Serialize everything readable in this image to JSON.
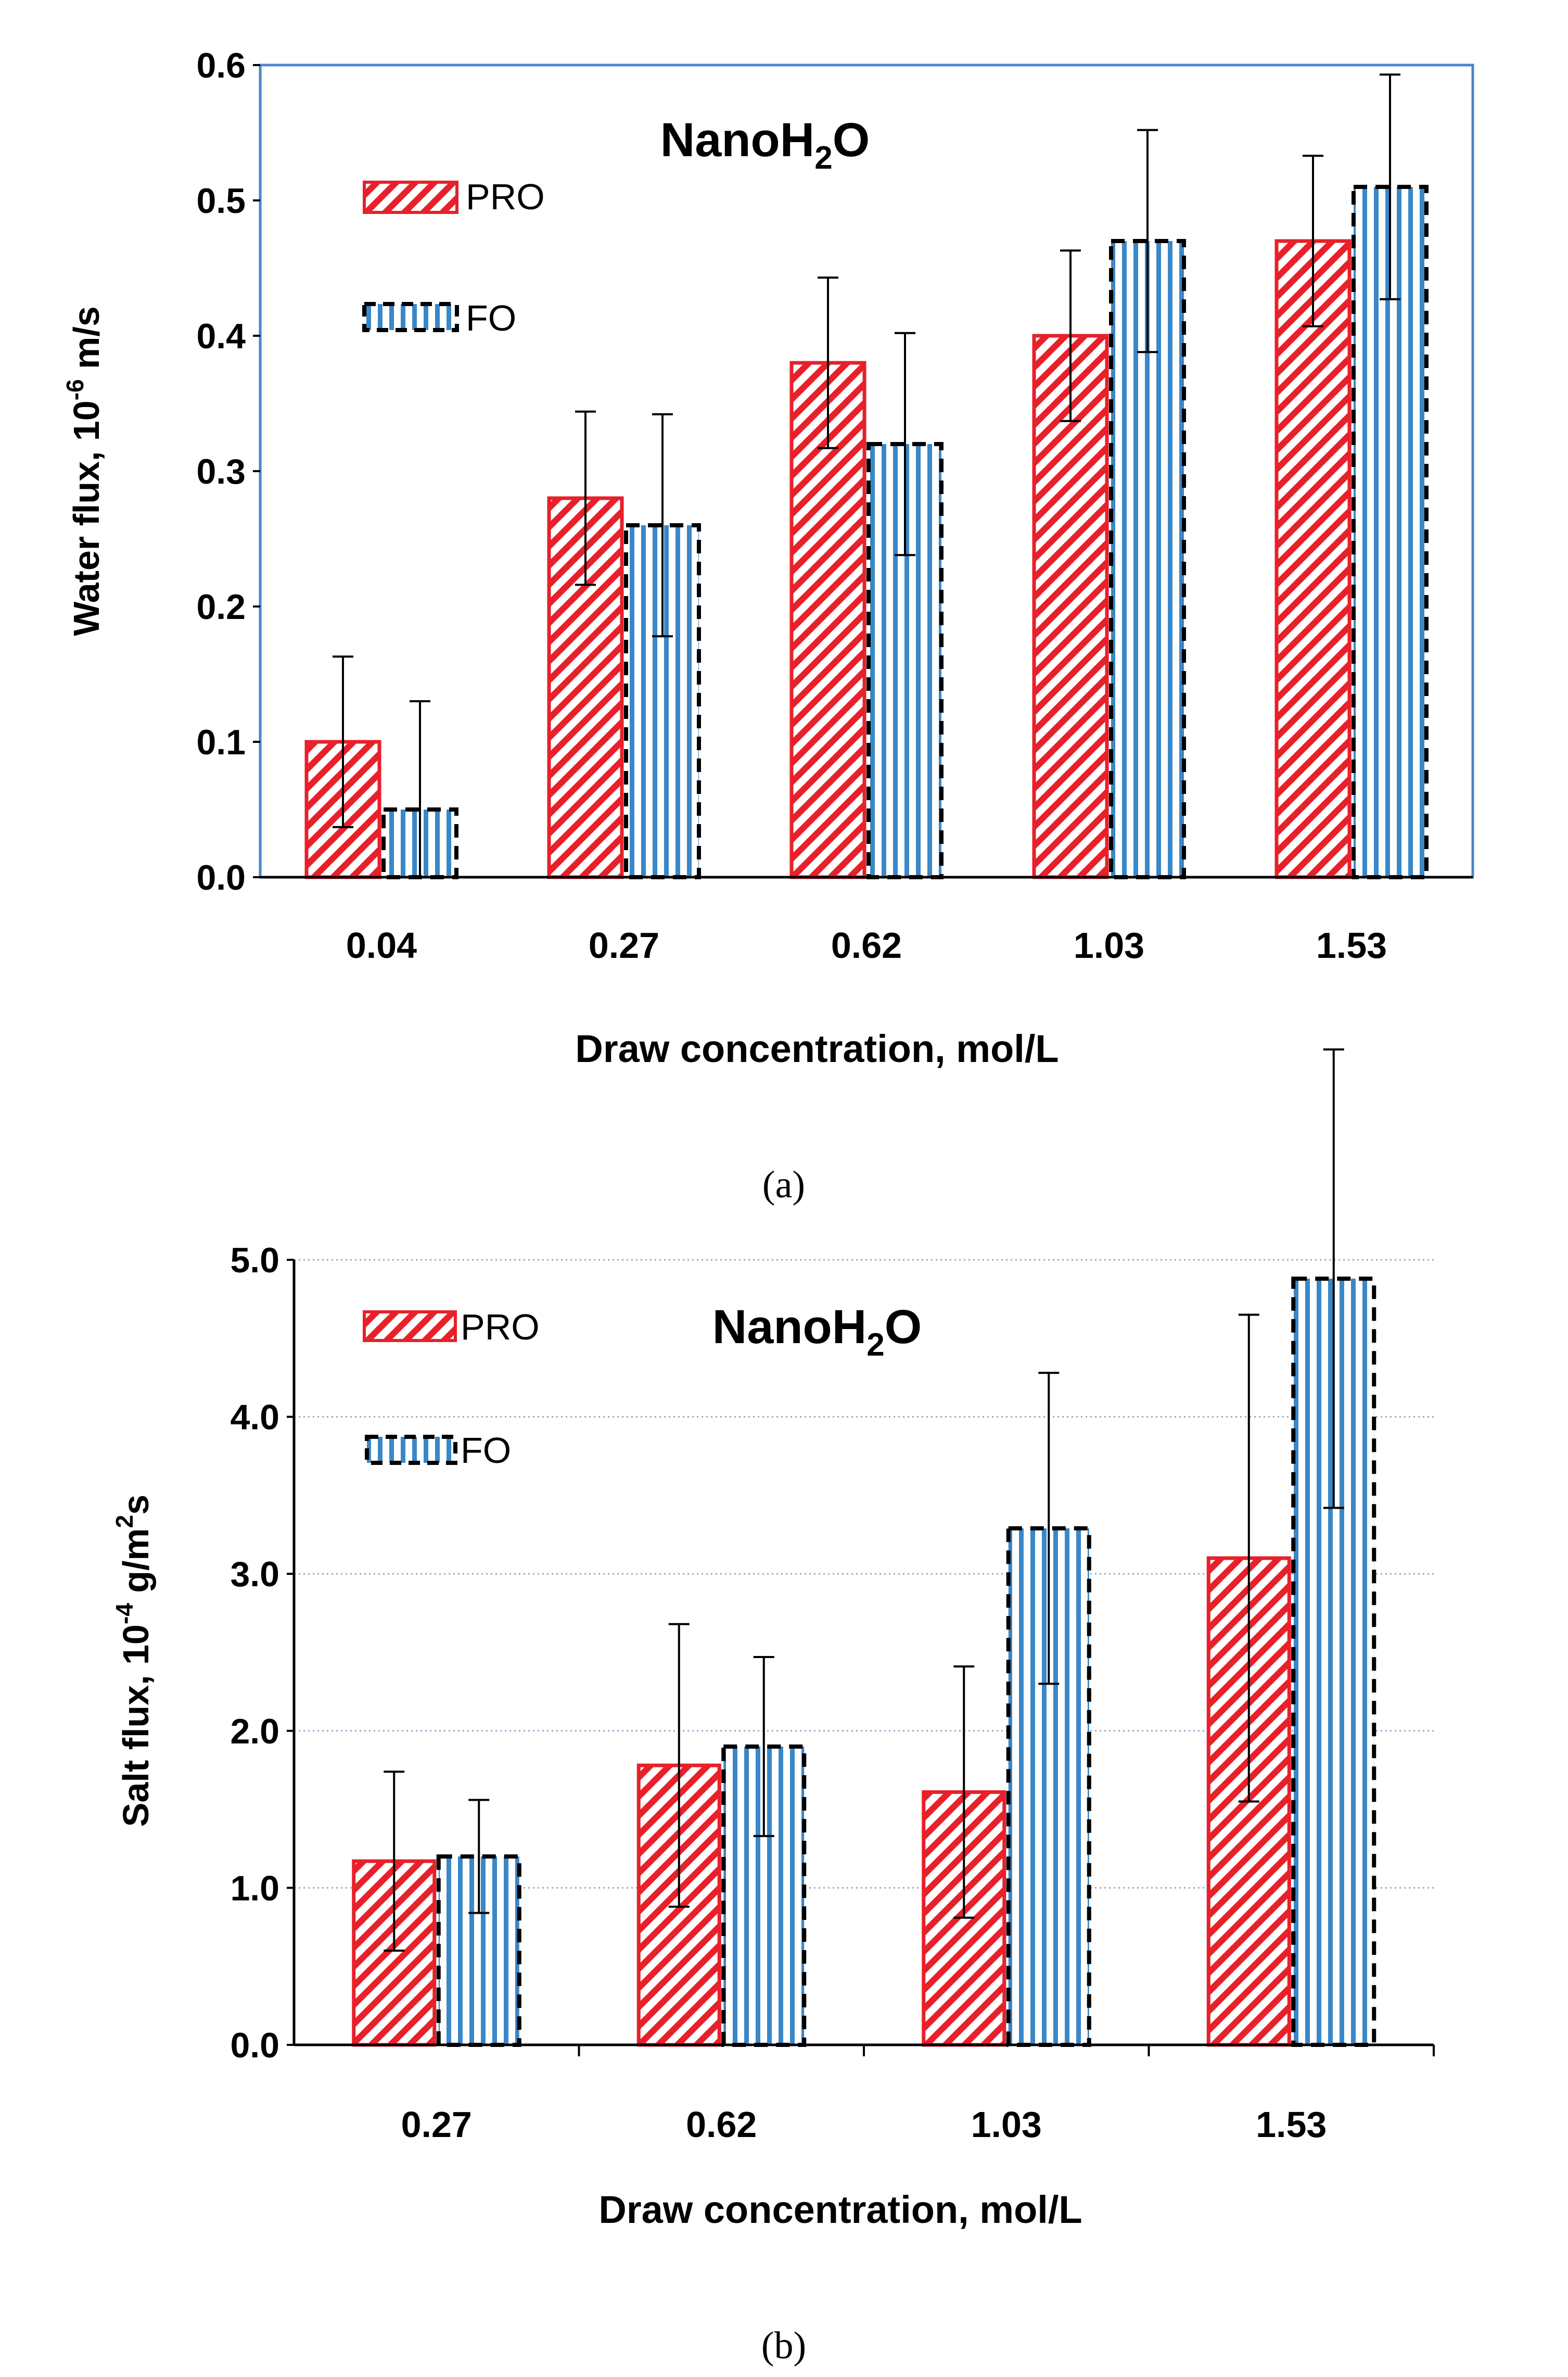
{
  "figure": {
    "caption_a": "(a)",
    "caption_b": "(b)"
  },
  "colors": {
    "pro": "#e8202a",
    "fo_fill": "#3a87c8",
    "fo_border": "#000000",
    "frame_a": "#4a86c8",
    "grid": "#9aa6c8"
  },
  "chart_data": [
    {
      "type": "bar",
      "panel": "a",
      "title": "NanoH2O",
      "title_main": "NanoH",
      "title_sub": "2",
      "title_tail": "O",
      "xlabel": "Draw concentration, mol/L",
      "ylabel_main": "Water flux, 10",
      "ylabel_exp": "-6",
      "ylabel_unit": " m/s",
      "ylim": [
        0,
        0.6
      ],
      "yticks": [
        "0.0",
        "0.1",
        "0.2",
        "0.3",
        "0.4",
        "0.5",
        "0.6"
      ],
      "categories": [
        "0.04",
        "0.27",
        "0.62",
        "1.03",
        "1.53"
      ],
      "legend": "top-left",
      "series": [
        {
          "name": "PRO",
          "values": [
            0.1,
            0.28,
            0.38,
            0.4,
            0.47
          ],
          "errors": [
            0.063,
            0.064,
            0.063,
            0.063,
            0.063
          ]
        },
        {
          "name": "FO",
          "values": [
            0.05,
            0.26,
            0.32,
            0.47,
            0.51
          ],
          "errors": [
            0.08,
            0.082,
            0.082,
            0.082,
            0.083
          ]
        }
      ]
    },
    {
      "type": "bar",
      "panel": "b",
      "title": "NanoH2O",
      "title_main": "NanoH",
      "title_sub": "2",
      "title_tail": "O",
      "xlabel": "Draw concentration, mol/L",
      "ylabel_main": "Salt flux, 10",
      "ylabel_exp": "-4",
      "ylabel_unit": " g/m",
      "ylabel_exp2": "2",
      "ylabel_tail": "s",
      "ylim": [
        0,
        5.0
      ],
      "yticks": [
        "0.0",
        "1.0",
        "2.0",
        "3.0",
        "4.0",
        "5.0"
      ],
      "grid": true,
      "categories": [
        "0.27",
        "0.62",
        "1.03",
        "1.53"
      ],
      "legend": "top-left",
      "series": [
        {
          "name": "PRO",
          "values": [
            1.17,
            1.78,
            1.61,
            3.1
          ],
          "errors": [
            0.57,
            0.9,
            0.8,
            1.55
          ]
        },
        {
          "name": "FO",
          "values": [
            1.2,
            1.9,
            3.29,
            4.88
          ],
          "errors": [
            0.36,
            0.57,
            0.99,
            1.46
          ]
        }
      ]
    }
  ]
}
